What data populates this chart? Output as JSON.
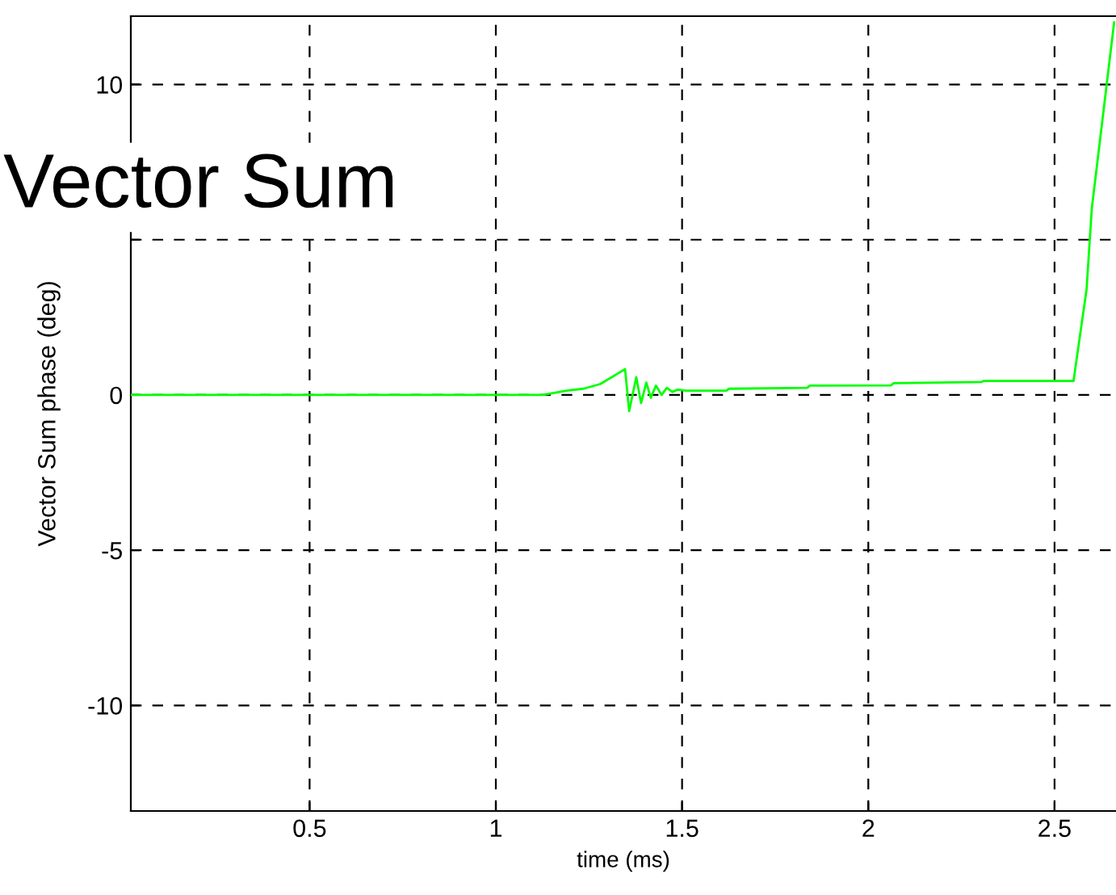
{
  "chart_data": {
    "type": "line",
    "title": "Vector Sum",
    "xlabel": "time (ms)",
    "ylabel": "Vector Sum phase (deg)",
    "xlim": [
      0.02,
      2.665
    ],
    "ylim": [
      -13.4,
      12.2
    ],
    "xticks": [
      0.5,
      1,
      1.5,
      2,
      2.5
    ],
    "yticks": [
      -10,
      -5,
      0,
      {
        "value": 5,
        "label": null
      },
      10
    ],
    "grid": true,
    "line_style": "solid",
    "marker": "none",
    "series": [
      {
        "color": "#00ff00",
        "x": [
          0.02,
          1.126,
          1.19,
          1.235,
          1.28,
          1.347,
          1.358,
          1.377,
          1.39,
          1.404,
          1.416,
          1.43,
          1.445,
          1.459,
          1.474,
          1.488,
          1.51,
          1.619,
          1.626,
          1.836,
          1.843,
          2.061,
          2.068,
          2.304,
          2.31,
          2.551,
          2.586,
          2.6,
          2.63,
          2.66
        ],
        "values": [
          0,
          0,
          0.14,
          0.2,
          0.35,
          0.83,
          -0.52,
          0.57,
          -0.26,
          0.4,
          -0.09,
          0.3,
          0.0,
          0.23,
          0.1,
          0.17,
          0.14,
          0.14,
          0.2,
          0.23,
          0.3,
          0.31,
          0.38,
          0.42,
          0.45,
          0.45,
          3.4,
          6,
          9,
          12.0
        ]
      }
    ]
  }
}
